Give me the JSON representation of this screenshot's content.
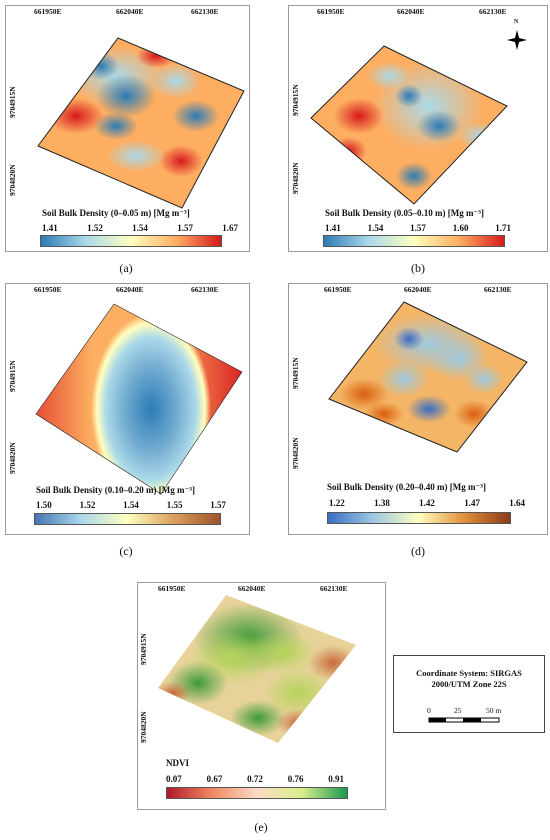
{
  "panels": {
    "a": {
      "caption": "(a)",
      "easting": [
        "661950E",
        "662040E",
        "662130E"
      ],
      "northing": [
        "9704915N",
        "9704820N"
      ],
      "legend_title": "Soil Bulk Density (0–0.05 m) [Mg m⁻³]",
      "ticks": [
        "1.41",
        "1.52",
        "1.54",
        "1.57",
        "1.67"
      ]
    },
    "b": {
      "caption": "(b)",
      "easting": [
        "661950E",
        "662040E",
        "662130E"
      ],
      "northing": [
        "9704915N",
        "9704820N"
      ],
      "north_label": "N",
      "legend_title": "Soil Bulk Density (0.05–0.10 m) [Mg m⁻³]",
      "ticks": [
        "1.41",
        "1.54",
        "1.57",
        "1.60",
        "1.71"
      ]
    },
    "c": {
      "caption": "(c)",
      "easting": [
        "661950E",
        "662040E",
        "662130E"
      ],
      "northing": [
        "9704915N",
        "9704820N"
      ],
      "legend_title": "Soil Bulk Density (0.10–0.20 m) [Mg m⁻³]",
      "ticks": [
        "1.50",
        "1.52",
        "1.54",
        "1.55",
        "1.57"
      ]
    },
    "d": {
      "caption": "(d)",
      "easting": [
        "661950E",
        "662040E",
        "662130E"
      ],
      "northing": [
        "9704915N",
        "9704820N"
      ],
      "legend_title": "Soil Bulk Density (0.20–0.40 m) [Mg m⁻³]",
      "ticks": [
        "1.22",
        "1.38",
        "1.42",
        "1.47",
        "1.64"
      ]
    },
    "e": {
      "caption": "(e)",
      "easting": [
        "661950E",
        "662040E",
        "662130E"
      ],
      "northing": [
        "9704915N",
        "9704820N"
      ],
      "legend_title": "NDVI",
      "ticks": [
        "0.07",
        "0.67",
        "0.72",
        "0.76",
        "0.91"
      ]
    }
  },
  "info": {
    "coordinate_system_line1": "Coordinate System: SIRGAS",
    "coordinate_system_line2": "2000/UTM Zone 22S",
    "scale_labels": [
      "0",
      "25",
      "50 m"
    ]
  },
  "colors": {
    "density_ramp": [
      "#2c7bb6",
      "#abd9e9",
      "#ffffbf",
      "#fdae61",
      "#d7191c"
    ],
    "ndvi_ramp": [
      "#b2182b",
      "#ef8a62",
      "#fddbc7",
      "#d9ef8b",
      "#1a9850"
    ],
    "panel_c_ramp": [
      "#4575b4",
      "#abd9e9",
      "#ffffbf",
      "#d9a05b",
      "#a0522d"
    ],
    "panel_d_ramp": [
      "#3b6cc7",
      "#9ecae1",
      "#ffffbf",
      "#e08f3a",
      "#8b3a1a"
    ]
  }
}
